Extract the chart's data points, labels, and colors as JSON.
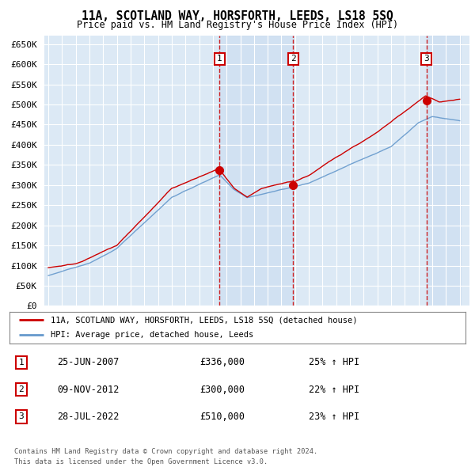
{
  "title": "11A, SCOTLAND WAY, HORSFORTH, LEEDS, LS18 5SQ",
  "subtitle": "Price paid vs. HM Land Registry's House Price Index (HPI)",
  "background_color": "#ffffff",
  "plot_bg_color": "#dce9f5",
  "grid_color": "#ffffff",
  "ylim": [
    0,
    670000
  ],
  "yticks": [
    0,
    50000,
    100000,
    150000,
    200000,
    250000,
    300000,
    350000,
    400000,
    450000,
    500000,
    550000,
    600000,
    650000
  ],
  "legend_label_red": "11A, SCOTLAND WAY, HORSFORTH, LEEDS, LS18 5SQ (detached house)",
  "legend_label_blue": "HPI: Average price, detached house, Leeds",
  "footer_line1": "Contains HM Land Registry data © Crown copyright and database right 2024.",
  "footer_line2": "This data is licensed under the Open Government Licence v3.0.",
  "sale_markers": [
    {
      "num": 1,
      "date_str": "25-JUN-2007",
      "x": 2007.49,
      "price": 336000,
      "pct": "25%",
      "dir": "↑"
    },
    {
      "num": 2,
      "date_str": "09-NOV-2012",
      "x": 2012.86,
      "price": 300000,
      "pct": "22%",
      "dir": "↑"
    },
    {
      "num": 3,
      "date_str": "28-JUL-2022",
      "x": 2022.57,
      "price": 510000,
      "pct": "23%",
      "dir": "↑"
    }
  ],
  "red_line_color": "#cc0000",
  "blue_line_color": "#6699cc",
  "vline_color": "#cc0000",
  "marker_box_color": "#cc0000",
  "shade_color": "#c8daf0",
  "xstart": 1995,
  "xend": 2025
}
